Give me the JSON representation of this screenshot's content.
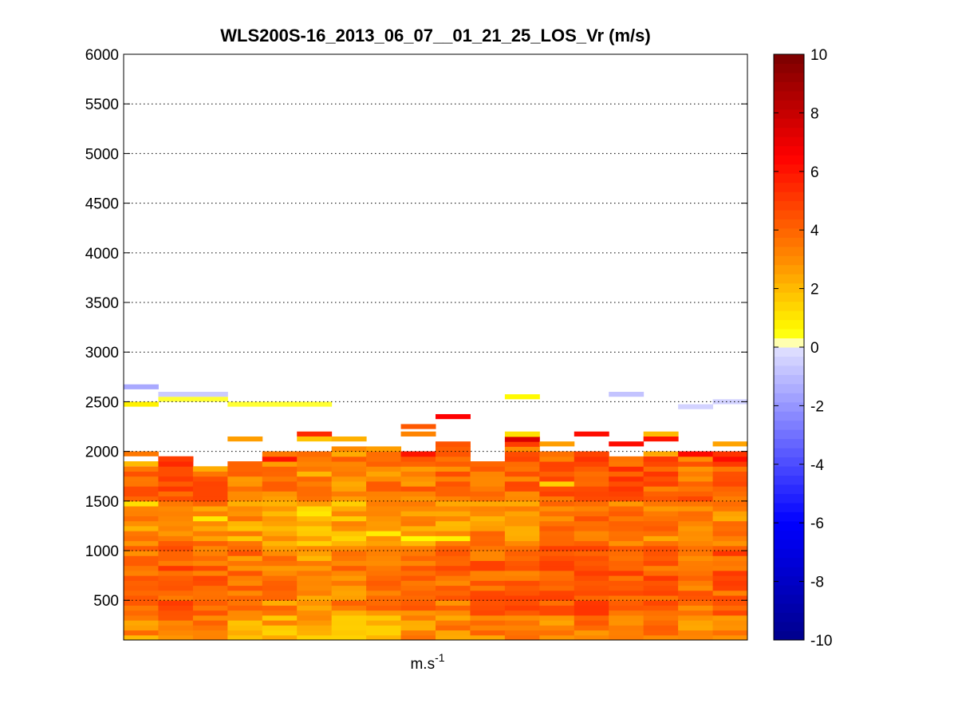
{
  "chart_data": {
    "type": "heatmap",
    "title": "WLS200S-16_2013_06_07__01_21_25_LOS_Vr (m/s)",
    "xlabel": "m.s",
    "xlabel_superscript": "-1",
    "ylabel": "",
    "ylim": [
      100,
      6000
    ],
    "y_ticks": [
      "500",
      "1000",
      "1500",
      "2000",
      "2500",
      "3000",
      "3500",
      "4000",
      "4500",
      "5000",
      "5500",
      "6000"
    ],
    "y_grid": "dotted",
    "colorbar": {
      "range": [
        -10,
        10
      ],
      "ticks": [
        "10",
        "8",
        "6",
        "4",
        "2",
        "0",
        "-2",
        "-4",
        "-6",
        "-8",
        "-10"
      ],
      "colormap": "blue-white-yellow-red",
      "colors": {
        "min": "#00008C",
        "blue": "#0000FF",
        "zero": "#FFFFFF",
        "yellow": "#FFFF00",
        "orange": "#FF8C00",
        "red": "#FF0000",
        "max": "#7A0000"
      }
    },
    "columns": 18,
    "range_gate_m": 50,
    "column_profiles": [
      {
        "top": 1850,
        "base": 3.8,
        "cells": [
          [
            1550,
            6.2
          ],
          [
            1475,
            1.2
          ],
          [
            1875,
            2.0
          ],
          [
            1975,
            3.5
          ],
          [
            2475,
            0.8
          ],
          [
            2650,
            -1.5
          ]
        ]
      },
      {
        "top": 1925,
        "base": 4.3,
        "cells": [
          [
            1875,
            5.5
          ],
          [
            1925,
            5.0
          ],
          [
            2525,
            0.4
          ],
          [
            2575,
            -0.6
          ]
        ]
      },
      {
        "top": 1850,
        "base": 4.0,
        "cells": [
          [
            1325,
            1.0
          ],
          [
            1825,
            2.3
          ],
          [
            2525,
            0.4
          ],
          [
            2575,
            -0.6
          ]
        ]
      },
      {
        "top": 1875,
        "base": 3.6,
        "cells": [
          [
            1225,
            1.8
          ],
          [
            1675,
            2.8
          ],
          [
            1850,
            -2.0
          ],
          [
            2125,
            2.6
          ],
          [
            2475,
            0.4
          ]
        ]
      },
      {
        "top": 1975,
        "base": 3.2,
        "cells": [
          [
            1200,
            1.2
          ],
          [
            1600,
            4.8
          ],
          [
            1925,
            6.0
          ],
          [
            2475,
            0.4
          ]
        ]
      },
      {
        "top": 2000,
        "base": 3.0,
        "cells": [
          [
            1375,
            1.0
          ],
          [
            1800,
            1.0
          ],
          [
            2125,
            1.8
          ],
          [
            2175,
            5.5
          ],
          [
            2475,
            0.4
          ]
        ]
      },
      {
        "top": 2050,
        "base": 3.2,
        "cells": [
          [
            1150,
            1.2
          ],
          [
            2125,
            2.2
          ]
        ]
      },
      {
        "top": 2050,
        "base": 3.3,
        "cells": [
          [
            1175,
            0.9
          ],
          [
            1800,
            1.4
          ],
          [
            2025,
            2.6
          ]
        ]
      },
      {
        "top": 2000,
        "base": 3.6,
        "cells": [
          [
            1125,
            0.6
          ],
          [
            1975,
            6.0
          ],
          [
            2175,
            3.2
          ],
          [
            2250,
            4.3
          ]
        ]
      },
      {
        "top": 2100,
        "base": 3.8,
        "cells": [
          [
            1125,
            0.8
          ],
          [
            2050,
            2.4
          ],
          [
            2350,
            6.5
          ]
        ]
      },
      {
        "top": 1900,
        "base": 4.0,
        "cells": [
          [
            1650,
            6.0
          ],
          [
            1850,
            3.6
          ]
        ]
      },
      {
        "top": 2200,
        "base": 4.0,
        "cells": [
          [
            2125,
            7.5
          ],
          [
            2175,
            1.2
          ],
          [
            2550,
            0.6
          ]
        ]
      },
      {
        "top": 1975,
        "base": 4.2,
        "cells": [
          [
            1675,
            1.5
          ],
          [
            2075,
            2.6
          ]
        ]
      },
      {
        "top": 1975,
        "base": 4.5,
        "cells": [
          [
            2175,
            6.2
          ]
        ]
      },
      {
        "top": 1950,
        "base": 4.4,
        "cells": [
          [
            2075,
            6.2
          ],
          [
            2575,
            -0.8
          ]
        ]
      },
      {
        "top": 1950,
        "base": 4.2,
        "cells": [
          [
            2125,
            6.0
          ],
          [
            2175,
            2.0
          ],
          [
            1975,
            2.4
          ]
        ]
      },
      {
        "top": 2000,
        "base": 3.8,
        "cells": [
          [
            150,
            1.0
          ],
          [
            1900,
            1.2
          ],
          [
            1975,
            6.3
          ],
          [
            2450,
            -0.4
          ]
        ]
      },
      {
        "top": 2000,
        "base": 4.2,
        "cells": [
          [
            150,
            2.5
          ],
          [
            1925,
            6.2
          ],
          [
            2075,
            2.5
          ],
          [
            2500,
            -0.4
          ]
        ]
      }
    ]
  }
}
